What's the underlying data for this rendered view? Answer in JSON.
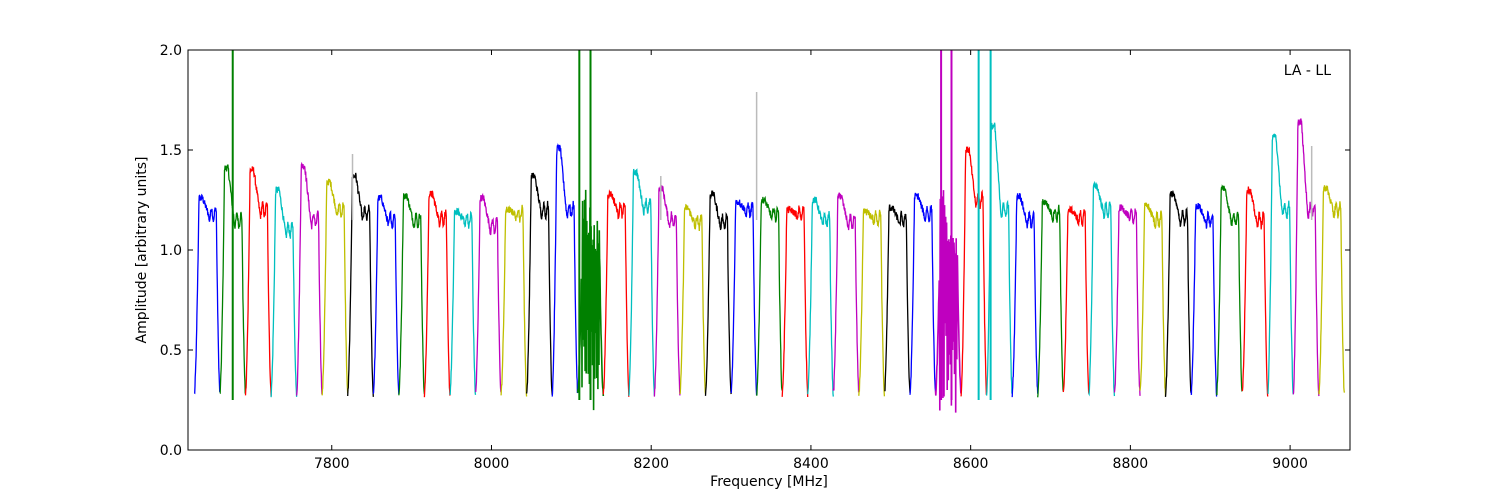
{
  "chart_data": {
    "type": "line",
    "title": "",
    "annotation": "LA - LL",
    "xlabel": "Frequency [MHz]",
    "ylabel": "Amplitude [arbitrary units]",
    "xlim": [
      7620,
      9075
    ],
    "ylim": [
      0.0,
      2.0
    ],
    "xticks": [
      {
        "value": 7800,
        "label": "7800"
      },
      {
        "value": 8000,
        "label": "8000"
      },
      {
        "value": 8200,
        "label": "8200"
      },
      {
        "value": 8400,
        "label": "8400"
      },
      {
        "value": 8600,
        "label": "8600"
      },
      {
        "value": 8800,
        "label": "8800"
      },
      {
        "value": 9000,
        "label": "9000"
      }
    ],
    "yticks": [
      {
        "value": 0.0,
        "label": "0.0"
      },
      {
        "value": 0.5,
        "label": "0.5"
      },
      {
        "value": 1.0,
        "label": "1.0"
      },
      {
        "value": 1.5,
        "label": "1.5"
      },
      {
        "value": 2.0,
        "label": "2.0"
      }
    ],
    "grid": false,
    "channel_width_mhz": 32,
    "channels": [
      {
        "start": 7628,
        "color": "#0000ff",
        "peak": 1.26,
        "base": 1.18
      },
      {
        "start": 7660,
        "color": "#008000",
        "peak": 1.41,
        "base": 1.15,
        "spikes": [
          {
            "f": 7676,
            "top": 2.0
          }
        ]
      },
      {
        "start": 7692,
        "color": "#ff0000",
        "peak": 1.4,
        "base": 1.2
      },
      {
        "start": 7724,
        "color": "#00bfbf",
        "peak": 1.3,
        "base": 1.1
      },
      {
        "start": 7756,
        "color": "#bf00bf",
        "peak": 1.42,
        "base": 1.15
      },
      {
        "start": 7788,
        "color": "#bfbf00",
        "peak": 1.34,
        "base": 1.2
      },
      {
        "start": 7820,
        "color": "#000000",
        "peak": 1.37,
        "base": 1.18
      },
      {
        "start": 7852,
        "color": "#0000ff",
        "peak": 1.26,
        "base": 1.15
      },
      {
        "start": 7884,
        "color": "#008000",
        "peak": 1.27,
        "base": 1.15
      },
      {
        "start": 7916,
        "color": "#ff0000",
        "peak": 1.28,
        "base": 1.16
      },
      {
        "start": 7948,
        "color": "#00bfbf",
        "peak": 1.19,
        "base": 1.15
      },
      {
        "start": 7980,
        "color": "#bf00bf",
        "peak": 1.26,
        "base": 1.12
      },
      {
        "start": 8012,
        "color": "#bfbf00",
        "peak": 1.2,
        "base": 1.18
      },
      {
        "start": 8044,
        "color": "#000000",
        "peak": 1.37,
        "base": 1.2
      },
      {
        "start": 8076,
        "color": "#0000ff",
        "peak": 1.51,
        "base": 1.2
      },
      {
        "start": 8108,
        "color": "#008000",
        "peak": 1.1,
        "base": 0.95,
        "noisy": true,
        "spikes": [
          {
            "f": 8110,
            "top": 2.0
          },
          {
            "f": 8124,
            "top": 2.0
          }
        ]
      },
      {
        "start": 8140,
        "color": "#ff0000",
        "peak": 1.28,
        "base": 1.2
      },
      {
        "start": 8172,
        "color": "#00bfbf",
        "peak": 1.39,
        "base": 1.22
      },
      {
        "start": 8204,
        "color": "#bf00bf",
        "peak": 1.31,
        "base": 1.15
      },
      {
        "start": 8236,
        "color": "#bfbf00",
        "peak": 1.21,
        "base": 1.14
      },
      {
        "start": 8268,
        "color": "#000000",
        "peak": 1.28,
        "base": 1.14
      },
      {
        "start": 8300,
        "color": "#0000ff",
        "peak": 1.24,
        "base": 1.2
      },
      {
        "start": 8332,
        "color": "#008000",
        "peak": 1.25,
        "base": 1.18
      },
      {
        "start": 8364,
        "color": "#ff0000",
        "peak": 1.2,
        "base": 1.18
      },
      {
        "start": 8396,
        "color": "#00bfbf",
        "peak": 1.25,
        "base": 1.15
      },
      {
        "start": 8428,
        "color": "#bf00bf",
        "peak": 1.27,
        "base": 1.14
      },
      {
        "start": 8460,
        "color": "#bfbf00",
        "peak": 1.19,
        "base": 1.16
      },
      {
        "start": 8492,
        "color": "#000000",
        "peak": 1.21,
        "base": 1.15
      },
      {
        "start": 8524,
        "color": "#0000ff",
        "peak": 1.27,
        "base": 1.18
      },
      {
        "start": 8556,
        "color": "#bf00bf",
        "peak": 1.1,
        "base": 0.95,
        "noisy": true,
        "spikes": [
          {
            "f": 8563,
            "top": 2.0
          },
          {
            "f": 8576,
            "top": 2.0
          }
        ]
      },
      {
        "start": 8588,
        "color": "#ff0000",
        "peak": 1.5,
        "base": 1.25
      },
      {
        "start": 8620,
        "color": "#00bfbf",
        "peak": 1.62,
        "base": 1.2,
        "spikes": [
          {
            "f": 8610,
            "top": 2.0
          },
          {
            "f": 8625,
            "top": 2.0
          }
        ]
      },
      {
        "start": 8652,
        "color": "#0000ff",
        "peak": 1.27,
        "base": 1.15
      },
      {
        "start": 8684,
        "color": "#008000",
        "peak": 1.24,
        "base": 1.18
      },
      {
        "start": 8716,
        "color": "#ff0000",
        "peak": 1.2,
        "base": 1.16
      },
      {
        "start": 8748,
        "color": "#00bfbf",
        "peak": 1.32,
        "base": 1.2
      },
      {
        "start": 8780,
        "color": "#bf00bf",
        "peak": 1.21,
        "base": 1.17
      },
      {
        "start": 8812,
        "color": "#bfbf00",
        "peak": 1.22,
        "base": 1.15
      },
      {
        "start": 8844,
        "color": "#000000",
        "peak": 1.28,
        "base": 1.16
      },
      {
        "start": 8876,
        "color": "#0000ff",
        "peak": 1.22,
        "base": 1.15
      },
      {
        "start": 8908,
        "color": "#008000",
        "peak": 1.31,
        "base": 1.16
      },
      {
        "start": 8940,
        "color": "#ff0000",
        "peak": 1.3,
        "base": 1.15
      },
      {
        "start": 8972,
        "color": "#00bfbf",
        "peak": 1.57,
        "base": 1.2
      },
      {
        "start": 9004,
        "color": "#bf00bf",
        "peak": 1.64,
        "base": 1.2
      },
      {
        "start": 9036,
        "color": "#bfbf00",
        "peak": 1.31,
        "base": 1.2
      }
    ],
    "gray_spikes": [
      {
        "f": 7826,
        "top": 1.48
      },
      {
        "f": 8212,
        "top": 1.37
      },
      {
        "f": 8332,
        "top": 1.79
      },
      {
        "f": 9027,
        "top": 1.52
      }
    ]
  }
}
